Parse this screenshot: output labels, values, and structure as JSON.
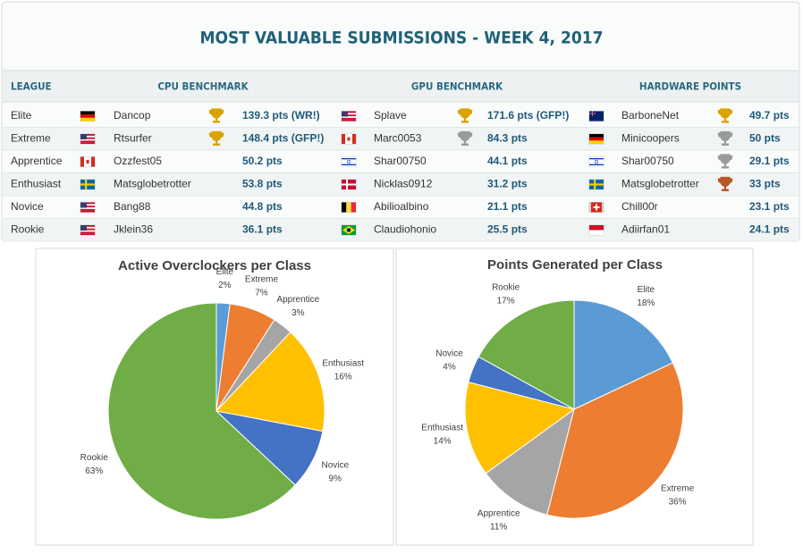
{
  "header": {
    "title": "MOST VALUABLE SUBMISSIONS - WEEK 4, 2017"
  },
  "table": {
    "columns": [
      "LEAGUE",
      "CPU BENCHMARK",
      "GPU BENCHMARK",
      "HARDWARE POINTS"
    ],
    "rows": [
      {
        "league": "Elite",
        "cpu": {
          "user": "Dancop",
          "score": "139.3 pts (WR!)"
        },
        "gpu": {
          "user": "Splave",
          "score": "171.6 pts (GFP!)"
        },
        "hw": {
          "user": "BarboneNet",
          "score": "49.7 pts"
        }
      },
      {
        "league": "Extreme",
        "cpu": {
          "user": "Rtsurfer",
          "score": "148.4 pts (GFP!)"
        },
        "gpu": {
          "user": "Marc0053",
          "score": "84.3 pts"
        },
        "hw": {
          "user": "Minicoopers",
          "score": "50 pts"
        }
      },
      {
        "league": "Apprentice",
        "cpu": {
          "user": "Ozzfest05",
          "score": "50.2 pts"
        },
        "gpu": {
          "user": "Shar00750",
          "score": "44.1 pts"
        },
        "hw": {
          "user": "Shar00750",
          "score": "29.1 pts"
        }
      },
      {
        "league": "Enthusiast",
        "cpu": {
          "user": "Matsglobetrotter",
          "score": "53.8 pts"
        },
        "gpu": {
          "user": "Nicklas0912",
          "score": "31.2 pts"
        },
        "hw": {
          "user": "Matsglobetrotter",
          "score": "33 pts"
        }
      },
      {
        "league": "Novice",
        "cpu": {
          "user": "Bang88",
          "score": "44.8 pts"
        },
        "gpu": {
          "user": "Abilioalbino",
          "score": "21.1 pts"
        },
        "hw": {
          "user": "Chill00r",
          "score": "23.1 pts"
        }
      },
      {
        "league": "Rookie",
        "cpu": {
          "user": "Jklein36",
          "score": "36.1 pts"
        },
        "gpu": {
          "user": "Claudiohonio",
          "score": "25.5 pts"
        },
        "hw": {
          "user": "Adiirfan01",
          "score": "24.1 pts"
        }
      }
    ]
  },
  "chart_data": [
    {
      "type": "pie",
      "title": "Active Overclockers per Class",
      "categories": [
        "Elite",
        "Extreme",
        "Apprentice",
        "Enthusiast",
        "Novice",
        "Rookie"
      ],
      "values": [
        2,
        7,
        3,
        16,
        9,
        63
      ],
      "value_labels": [
        "2%",
        "7%",
        "3%",
        "16%",
        "9%",
        "63%"
      ],
      "colors": [
        "#5b9bd5",
        "#ed7d31",
        "#a5a5a5",
        "#ffc000",
        "#4472c4",
        "#70ad47"
      ]
    },
    {
      "type": "pie",
      "title": "Points Generated per Class",
      "categories": [
        "Elite",
        "Extreme",
        "Apprentice",
        "Enthusiast",
        "Novice",
        "Rookie"
      ],
      "values": [
        18,
        36,
        11,
        14,
        4,
        17
      ],
      "value_labels": [
        "18%",
        "36%",
        "11%",
        "14%",
        "4%",
        "17%"
      ],
      "colors": [
        "#5b9bd5",
        "#ed7d31",
        "#a5a5a5",
        "#ffc000",
        "#4472c4",
        "#70ad47"
      ]
    }
  ]
}
